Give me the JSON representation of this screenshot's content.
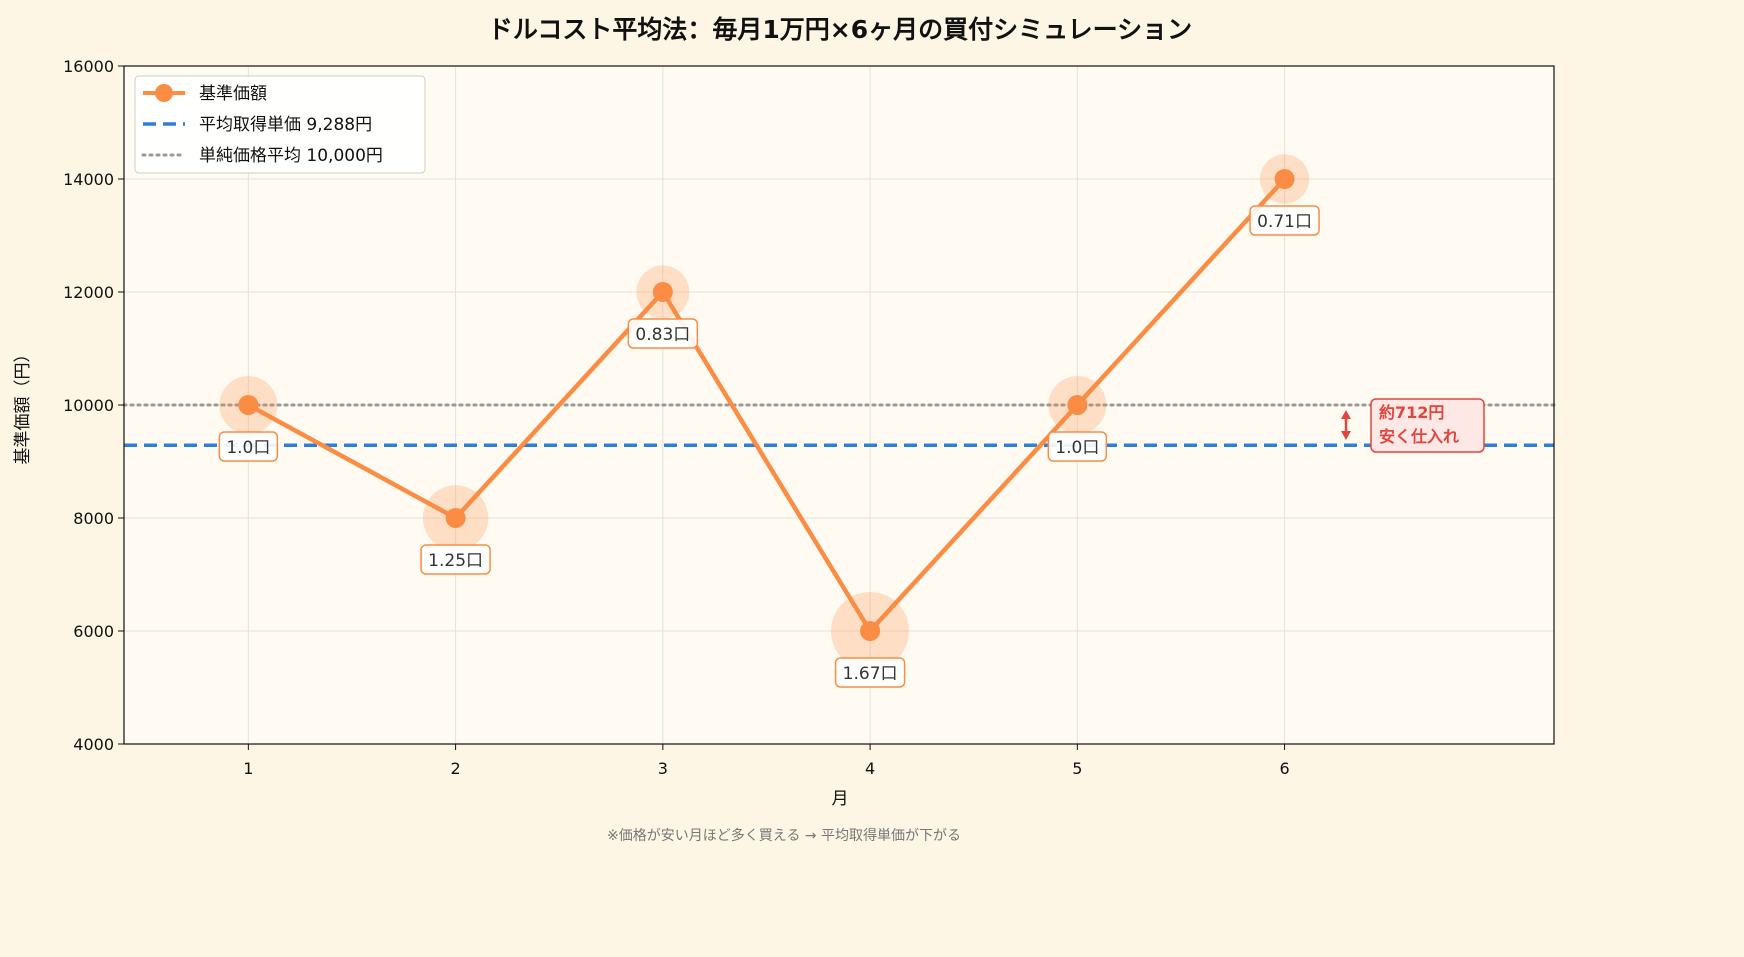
{
  "chart_data": {
    "type": "line",
    "title": "ドルコスト平均法：毎月1万円×6ヶ月の買付シミュレーション",
    "xlabel": "月",
    "ylabel": "基準価額（円）",
    "x": [
      1,
      2,
      3,
      4,
      5,
      6
    ],
    "x_range": [
      0.4,
      7.3
    ],
    "ylim": [
      4000,
      16000
    ],
    "y_ticks": [
      4000,
      6000,
      8000,
      10000,
      12000,
      14000,
      16000
    ],
    "grid": true,
    "legend_position": "top-left",
    "series": [
      {
        "name": "基準価額",
        "values": [
          10000,
          8000,
          12000,
          6000,
          10000,
          14000
        ],
        "color": "#fb8c44",
        "point_labels": [
          "1.0口",
          "1.25口",
          "0.83口",
          "1.67口",
          "1.0口",
          "0.71口"
        ],
        "units_bought": [
          1.0,
          1.25,
          0.83,
          1.67,
          1.0,
          0.71
        ]
      }
    ],
    "reference_lines": [
      {
        "name": "平均取得単価 9,288円",
        "value": 9288,
        "style": "dashed",
        "color": "#2e7fdb"
      },
      {
        "name": "単純価格平均 10,000円",
        "value": 10000,
        "style": "dotted",
        "color": "#999999"
      }
    ],
    "annotation": {
      "line1": "約712円",
      "line2": "安く仕入れ",
      "color": "#e2453c"
    },
    "note": "※価格が安い月ほど多く買える → 平均取得単価が下がる"
  }
}
